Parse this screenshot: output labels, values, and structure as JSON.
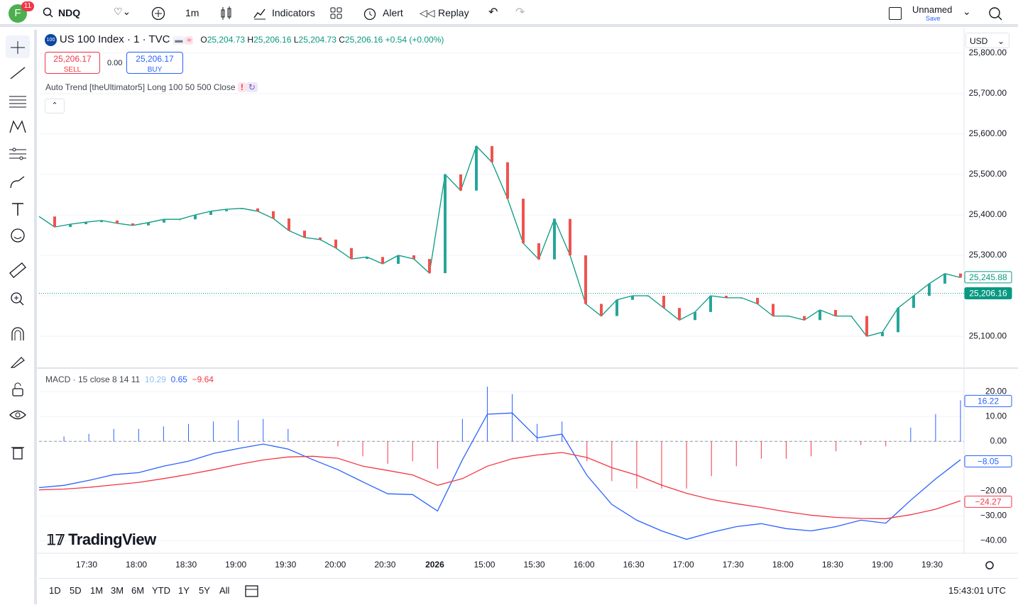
{
  "toolbar": {
    "avatar": "F",
    "badge": "11",
    "symbol": "NDQ",
    "interval": "1m",
    "indicators": "Indicators",
    "alert": "Alert",
    "replay": "Replay",
    "layout_name": "Unnamed",
    "layout_save": "Save"
  },
  "legend": {
    "exchange_badge": "100",
    "symbol": "US 100 Index · 1 · TVC",
    "open_label": "O",
    "open": "25,204.73",
    "high_label": "H",
    "high": "25,206.16",
    "low_label": "L",
    "low": "25,204.73",
    "close_label": "C",
    "close": "25,206.16",
    "change": "+0.54 (+0.00%)",
    "sell_price": "25,206.17",
    "sell": "SELL",
    "spread": "0.00",
    "buy_price": "25,206.17",
    "buy": "BUY",
    "indicator": "Auto Trend [theUltimator5] Long 100 50 500 Close",
    "currency": "USD"
  },
  "chart_data": [
    {
      "type": "line",
      "color": "#26a69a",
      "line_color": "#089981",
      "values": [
        25396,
        25370,
        25377,
        25382,
        25386,
        25379,
        25374,
        25381,
        25389,
        25389,
        25400,
        25409,
        25414,
        25416,
        25409,
        25391,
        25361,
        25344,
        25339,
        25318,
        25291,
        25296,
        25279,
        25300,
        25291,
        25256,
        25500,
        25460,
        25570,
        25530,
        25440,
        25330,
        25290,
        25390,
        25300,
        25180,
        25150,
        25190,
        25200,
        25200,
        25170,
        25140,
        25160,
        25200,
        25195,
        25195,
        25180,
        25150,
        25150,
        25140,
        25165,
        25150,
        25150,
        25100,
        25110,
        25170,
        25200,
        25230,
        25255,
        25245
      ],
      "ylim": [
        25023,
        25861
      ],
      "yticks": [
        {
          "value": 25100,
          "label": "25,100.00"
        },
        {
          "value": 25200,
          "label": "25,200.00"
        },
        {
          "value": 25300,
          "label": "25,300.00"
        },
        {
          "value": 25400,
          "label": "25,400.00"
        },
        {
          "value": 25500,
          "label": "25,500.00"
        },
        {
          "value": 25600,
          "label": "25,600.00"
        },
        {
          "value": 25700,
          "label": "25,700.00"
        },
        {
          "value": 25800,
          "label": "25,800.00"
        }
      ],
      "price_labels": [
        {
          "value": 25245.88,
          "label": "25,245.88",
          "style": "outline"
        },
        {
          "value": 25206.16,
          "label": "25,206.16",
          "style": "filled"
        }
      ]
    },
    {
      "type": "macd",
      "title": "MACD · 15",
      "params": "close 8 14 11",
      "legend_values": [
        "10.29",
        "0.65",
        "−9.64"
      ],
      "ylim": [
        -45,
        28.6
      ],
      "yticks": [
        {
          "value": 20,
          "label": "20.00"
        },
        {
          "value": 10,
          "label": "10.00"
        },
        {
          "value": 0,
          "label": "0.00"
        },
        {
          "value": -20,
          "label": "−20.00"
        },
        {
          "value": -30,
          "label": "−30.00"
        },
        {
          "value": -40,
          "label": "−40.00"
        }
      ],
      "series": [
        {
          "color": "#2962ff",
          "values": [
            -18.6,
            -17.7,
            -15.7,
            -13.4,
            -12.6,
            -10,
            -8,
            -4.9,
            -2.9,
            -1.1,
            -3.1,
            -7.4,
            -11.4,
            -16.3,
            -21.1,
            -21.4,
            -28,
            -7.4,
            10.9,
            11.4,
            1.4,
            2.9,
            -13.7,
            -25.4,
            -31.7,
            -36,
            -39.4,
            -36.6,
            -34.3,
            -33.1,
            -35.1,
            -36,
            -34.3,
            -31.7,
            -32.9,
            -23.7,
            -15.1,
            -7.4
          ]
        },
        {
          "color": "#f23645",
          "values": [
            -19.5,
            -19.2,
            -18.5,
            -17.5,
            -16.5,
            -15,
            -13.3,
            -11.4,
            -9.3,
            -7.5,
            -6.3,
            -6,
            -6.8,
            -10,
            -11.7,
            -13.5,
            -17.7,
            -15,
            -10,
            -7,
            -5.5,
            -4.5,
            -6.5,
            -10.6,
            -13.6,
            -17.6,
            -20.9,
            -23.4,
            -25.1,
            -26.6,
            -28.3,
            -29.7,
            -30.6,
            -31,
            -31.1,
            -29.5,
            -27.3,
            -23.9
          ]
        }
      ],
      "histogram": {
        "up_color": "#2962ff",
        "down_color": "#f23645",
        "values": [
          null,
          2,
          3,
          5,
          5,
          6,
          7,
          8,
          8.5,
          9,
          5,
          0,
          -2,
          -6,
          -9,
          -8,
          -11,
          9,
          22,
          19,
          7,
          8,
          -8,
          -16,
          -19,
          -19,
          -19,
          -14,
          -10,
          -7,
          -7,
          -6,
          -4,
          -1.5,
          -2,
          5.5,
          11,
          16.5
        ]
      },
      "last_labels": [
        {
          "value": 16.22,
          "label": "16.22",
          "color": "#2962ff"
        },
        {
          "value": -8.05,
          "label": "−8.05",
          "color": "#2962ff"
        },
        {
          "value": -24.27,
          "label": "−24.27",
          "color": "#f23645"
        }
      ]
    }
  ],
  "time_axis": [
    "17:30",
    "18:00",
    "18:30",
    "19:00",
    "19:30",
    "20:00",
    "20:30",
    "2026",
    "15:00",
    "15:30",
    "16:00",
    "16:30",
    "17:00",
    "17:30",
    "18:00",
    "18:30",
    "19:00",
    "19:30"
  ],
  "watermark": "TradingView",
  "bottom_bar": {
    "ranges": [
      "1D",
      "5D",
      "1M",
      "3M",
      "6M",
      "YTD",
      "1Y",
      "5Y",
      "All"
    ],
    "clock": "15:43:01 UTC"
  }
}
